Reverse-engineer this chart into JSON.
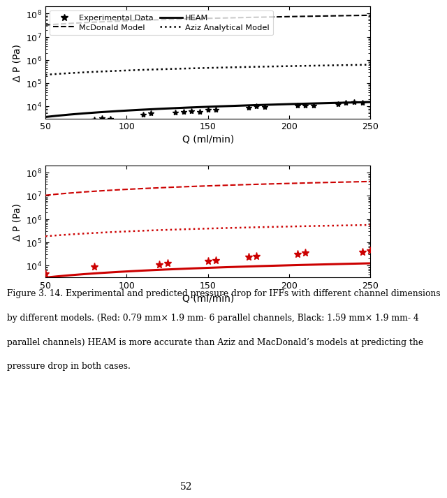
{
  "xlabel": "Q (ml/min)",
  "ylabel": "Δ P (Pa)",
  "xlim": [
    50,
    250
  ],
  "black_exp_Q": [
    80,
    85,
    90,
    110,
    115,
    130,
    135,
    140,
    145,
    150,
    155,
    175,
    180,
    185,
    205,
    210,
    215,
    230,
    235,
    240,
    245
  ],
  "black_exp_P": [
    2800,
    3200,
    2900,
    4500,
    5000,
    5500,
    6000,
    6500,
    6000,
    7000,
    7000,
    9000,
    10000,
    9500,
    11000,
    11000,
    11000,
    13000,
    14000,
    15000,
    14000
  ],
  "red_exp_Q": [
    50,
    80,
    120,
    125,
    150,
    155,
    175,
    180,
    205,
    210,
    245,
    250
  ],
  "red_exp_P": [
    4500,
    9000,
    11000,
    12500,
    15000,
    16500,
    23000,
    25000,
    30000,
    35000,
    38000,
    42000
  ],
  "black_heam_c": 3500,
  "black_heam_exp": 0.92,
  "black_mcd_c": 32000000.0,
  "black_mcd_exp": 0.6,
  "black_aziz_c": 230000.0,
  "black_aziz_exp": 0.62,
  "red_heam_c": 3000,
  "red_heam_exp": 0.88,
  "red_mcd_c": 10500000.0,
  "red_mcd_exp": 0.85,
  "red_aziz_c": 180000.0,
  "red_aziz_exp": 0.7,
  "ylim_min": 3000,
  "ylim_max": 200000000.0,
  "page_number": "52",
  "caption_lines": [
    "Figure 3. 14. Experimental and predicted pressure drop for IFFs with different channel dimensions",
    "by different models. (Red: 0.79 mm× 1.9 mm- 6 parallel channels, Black: 1.59 mm× 1.9 mm- 4",
    "parallel channels) HEAM is more accurate than Aziz and MacDonald’s models at predicting the",
    "pressure drop in both cases."
  ],
  "black_color": "#000000",
  "red_color": "#cc0000",
  "bg_color": "#ffffff"
}
